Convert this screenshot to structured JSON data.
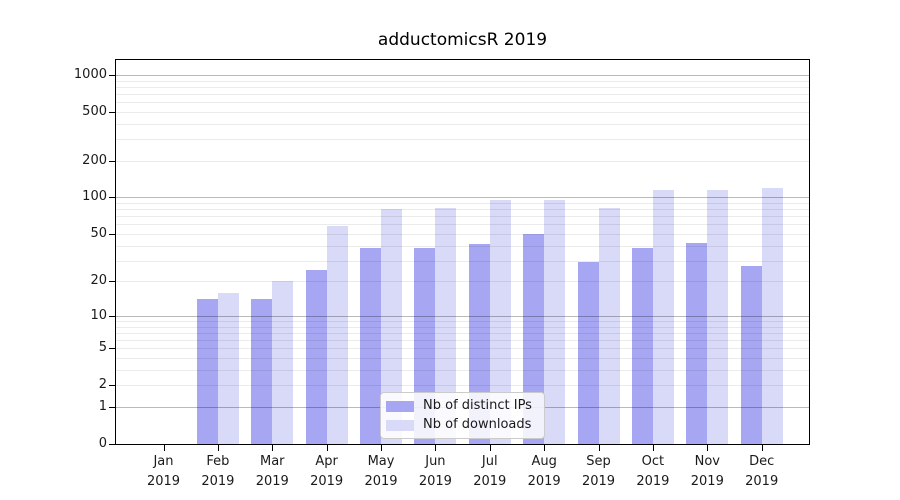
{
  "chart_data": {
    "type": "bar",
    "title": "adductomicsR 2019",
    "year_label": "2019",
    "categories": [
      "Jan",
      "Feb",
      "Mar",
      "Apr",
      "May",
      "Jun",
      "Jul",
      "Aug",
      "Sep",
      "Oct",
      "Nov",
      "Dec"
    ],
    "series": [
      {
        "name": "Nb of distinct IPs",
        "color": "#a6a6f2",
        "values": [
          0,
          14,
          14,
          25,
          38,
          38,
          41,
          50,
          29,
          38,
          42,
          27
        ]
      },
      {
        "name": "Nb of downloads",
        "color": "#d9d9f8",
        "values": [
          0,
          16,
          20,
          58,
          80,
          82,
          96,
          96,
          82,
          115,
          115,
          120
        ]
      }
    ],
    "y_ticks": [
      0,
      1,
      2,
      5,
      10,
      20,
      50,
      100,
      200,
      500,
      1000
    ],
    "y_scale": "log1p",
    "ylim": [
      0,
      1350
    ],
    "grid": true,
    "grid_major_at": [
      1,
      10,
      100,
      1000
    ],
    "legend_position": "bottom-center",
    "background": "#ffffff"
  }
}
